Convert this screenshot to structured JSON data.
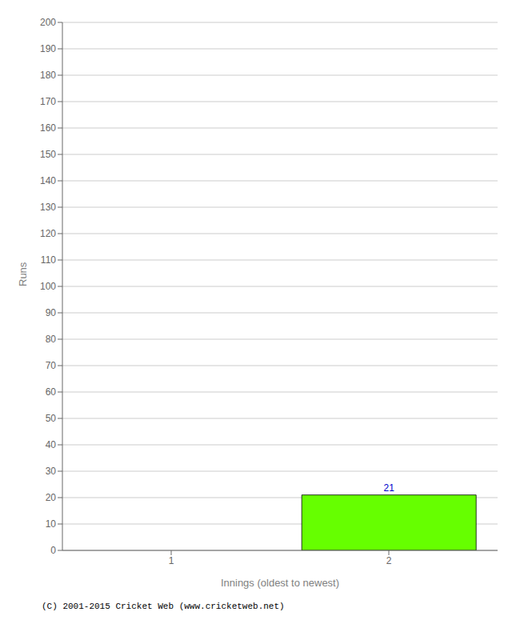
{
  "chart_data": {
    "type": "bar",
    "categories": [
      "1",
      "2"
    ],
    "values": [
      0,
      21
    ],
    "color": "#66ff00",
    "data_labels": true,
    "xlabel": "Innings (oldest to newest)",
    "ylabel": "Runs",
    "ylim": [
      0,
      200
    ],
    "yticks": [
      0,
      10,
      20,
      30,
      40,
      50,
      60,
      70,
      80,
      90,
      100,
      110,
      120,
      130,
      140,
      150,
      160,
      170,
      180,
      190,
      200
    ],
    "grid": true,
    "annotations": [
      "(C) 2001-2015 Cricket Web (www.cricketweb.net)"
    ]
  }
}
